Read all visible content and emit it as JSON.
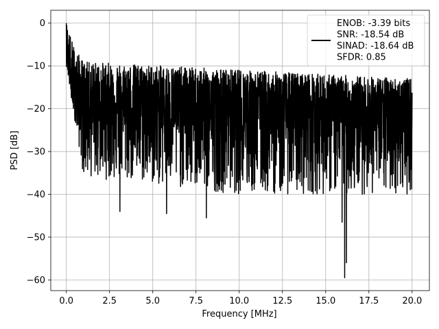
{
  "chart_data": {
    "type": "line",
    "title": "",
    "xlabel": "Frequency [MHz]",
    "ylabel": "PSD [dB]",
    "xlim": [
      -0.9,
      21.0
    ],
    "ylim": [
      -62.5,
      3.0
    ],
    "xticks": [
      0.0,
      2.5,
      5.0,
      7.5,
      10.0,
      12.5,
      15.0,
      17.5,
      20.0
    ],
    "xtick_labels": [
      "0.0",
      "2.5",
      "5.0",
      "7.5",
      "10.0",
      "12.5",
      "15.0",
      "17.5",
      "20.0"
    ],
    "yticks": [
      0,
      -10,
      -20,
      -30,
      -40,
      -50,
      -60
    ],
    "ytick_labels": [
      "0",
      "−10",
      "−20",
      "−30",
      "−40",
      "−50",
      "−60"
    ],
    "grid": true,
    "legend_placement": "top-right",
    "series": [
      {
        "name": "ENOB: -3.39 bits\nSNR: -18.54 dB\nSINAD: -18.64 dB\nSFDR: 0.85",
        "color": "#000000",
        "x_range": [
          0.0,
          20.0
        ],
        "base_trend": [
          [
            0.0,
            -2
          ],
          [
            0.1,
            -9
          ],
          [
            0.3,
            -17
          ],
          [
            1.0,
            -19
          ],
          [
            5.0,
            -20
          ],
          [
            10.0,
            -21
          ],
          [
            15.0,
            -21.5
          ],
          [
            20.0,
            -22
          ]
        ],
        "envelope_upper": [
          [
            0.0,
            0
          ],
          [
            0.5,
            -6
          ],
          [
            1.0,
            -9
          ],
          [
            20.0,
            -13
          ]
        ],
        "envelope_lower": [
          [
            0.0,
            -10
          ],
          [
            1.0,
            -36
          ],
          [
            10.0,
            -40
          ],
          [
            20.0,
            -40
          ]
        ],
        "notable_dips": [
          [
            3.1,
            -44
          ],
          [
            5.8,
            -44.5
          ],
          [
            8.1,
            -45.5
          ],
          [
            16.1,
            -59.5
          ],
          [
            16.2,
            -56
          ],
          [
            15.95,
            -46.5
          ]
        ],
        "peak_near_dc": 0.0
      }
    ],
    "legend_lines": [
      "ENOB: -3.39 bits",
      "SNR: -18.54 dB",
      "SINAD: -18.64 dB",
      "SFDR: 0.85"
    ]
  }
}
